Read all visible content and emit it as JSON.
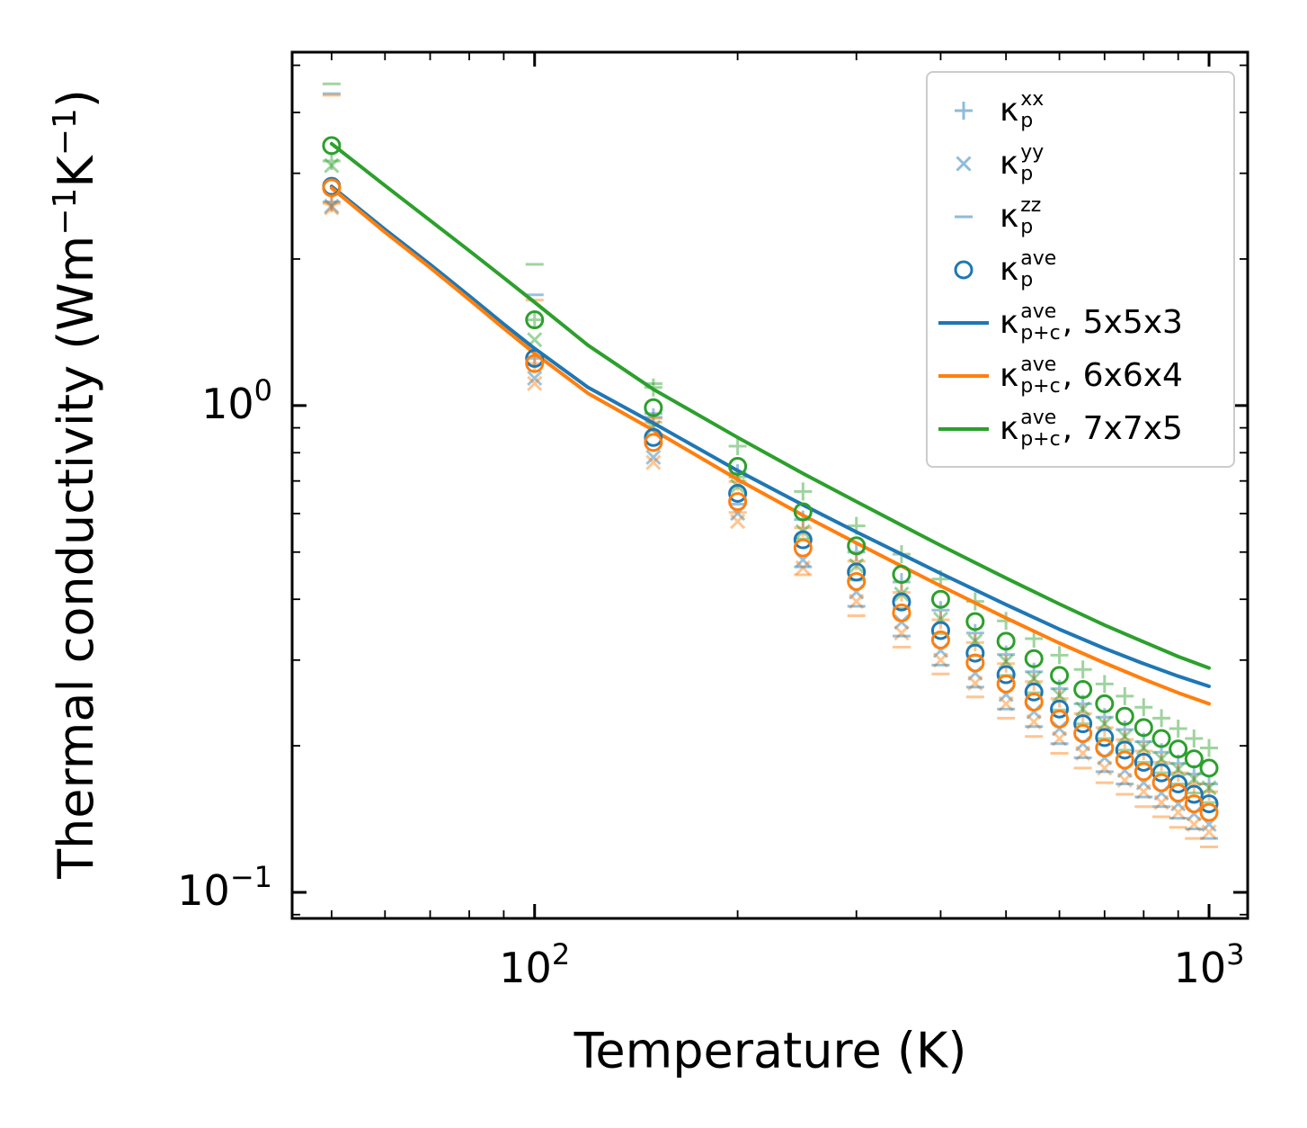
{
  "chart_data": {
    "type": "scatter+line",
    "title": "",
    "xlabel": "Temperature (K)",
    "ylabel": {
      "pre": "Thermal conductivity (Wm",
      "sup1": "−1",
      "mid": "K",
      "sup2": "−1",
      "post": ")"
    },
    "xscale": "log",
    "yscale": "log",
    "xlim": [
      43.7,
      1141
    ],
    "ylim": [
      0.0884,
      5.32
    ],
    "axes": {
      "xticks": [
        {
          "v": 100,
          "base": "10",
          "exp": "2"
        },
        {
          "v": 1000,
          "base": "10",
          "exp": "3"
        }
      ],
      "yticks": [
        {
          "v": 1,
          "base": "10",
          "exp": "0"
        },
        {
          "v": 0.1,
          "base": "10",
          "exp": "−1"
        }
      ],
      "xminor": [
        50,
        60,
        70,
        80,
        90,
        200,
        300,
        400,
        500,
        600,
        700,
        800,
        900
      ],
      "yminor": [
        0.09,
        0.2,
        0.3,
        0.4,
        0.5,
        0.6,
        0.7,
        0.8,
        0.9,
        2,
        3,
        4,
        5
      ]
    },
    "colors": {
      "blue": "#1f77b4",
      "orange": "#ff7f0e",
      "green": "#2ca02c"
    },
    "temperatures": [
      50,
      100,
      150,
      200,
      250,
      300,
      350,
      400,
      450,
      500,
      550,
      600,
      650,
      700,
      750,
      800,
      850,
      900,
      950,
      1000
    ],
    "series": [
      {
        "name": "kappa-p-xx-5x5x3",
        "marker": "plus",
        "color": "#1f77b4",
        "alpha": 0.45,
        "values": [
          2.62,
          1.25,
          0.946,
          0.726,
          0.583,
          0.5,
          0.434,
          0.38,
          0.341,
          0.308,
          0.284,
          0.262,
          0.244,
          0.229,
          0.216,
          0.204,
          0.194,
          0.184,
          0.175,
          0.167
        ]
      },
      {
        "name": "kappa-p-xx-6x6x4",
        "marker": "plus",
        "color": "#ff7f0e",
        "alpha": 0.45,
        "values": [
          2.6,
          1.22,
          0.924,
          0.698,
          0.561,
          0.479,
          0.413,
          0.363,
          0.326,
          0.295,
          0.271,
          0.25,
          0.233,
          0.218,
          0.206,
          0.195,
          0.185,
          0.176,
          0.167,
          0.161
        ]
      },
      {
        "name": "kappa-p-xx-7x7x5",
        "marker": "plus",
        "color": "#2ca02c",
        "alpha": 0.45,
        "values": [
          3.18,
          1.5,
          1.089,
          0.825,
          0.666,
          0.566,
          0.495,
          0.44,
          0.396,
          0.361,
          0.332,
          0.307,
          0.287,
          0.268,
          0.253,
          0.24,
          0.228,
          0.217,
          0.207,
          0.198
        ]
      },
      {
        "name": "kappa-p-yy-5x5x3",
        "marker": "cross",
        "color": "#1f77b4",
        "alpha": 0.45,
        "values": [
          2.566,
          1.138,
          0.783,
          0.601,
          0.482,
          0.414,
          0.359,
          0.314,
          0.282,
          0.255,
          0.235,
          0.217,
          0.202,
          0.189,
          0.178,
          0.168,
          0.16,
          0.152,
          0.145,
          0.138
        ]
      },
      {
        "name": "kappa-p-yy-6x6x4",
        "marker": "cross",
        "color": "#ff7f0e",
        "alpha": 0.45,
        "values": [
          2.548,
          1.11,
          0.764,
          0.578,
          0.464,
          0.396,
          0.341,
          0.3,
          0.269,
          0.244,
          0.224,
          0.207,
          0.193,
          0.18,
          0.17,
          0.161,
          0.153,
          0.146,
          0.138,
          0.133
        ]
      },
      {
        "name": "kappa-p-yy-7x7x5",
        "marker": "cross",
        "color": "#2ca02c",
        "alpha": 0.45,
        "values": [
          3.112,
          1.365,
          0.901,
          0.683,
          0.551,
          0.469,
          0.41,
          0.364,
          0.328,
          0.298,
          0.275,
          0.254,
          0.238,
          0.222,
          0.209,
          0.198,
          0.188,
          0.179,
          0.171,
          0.164
        ]
      },
      {
        "name": "kappa-p-zz-5x5x3",
        "marker": "dash",
        "color": "#1f77b4",
        "alpha": 0.45,
        "values": [
          4.371,
          1.688,
          0.963,
          0.627,
          0.466,
          0.387,
          0.336,
          0.293,
          0.264,
          0.238,
          0.219,
          0.202,
          0.189,
          0.177,
          0.167,
          0.157,
          0.15,
          0.142,
          0.135,
          0.129
        ]
      },
      {
        "name": "kappa-p-zz-6x6x4",
        "marker": "dash",
        "color": "#ff7f0e",
        "alpha": 0.45,
        "values": [
          4.34,
          1.647,
          0.941,
          0.603,
          0.449,
          0.37,
          0.319,
          0.281,
          0.252,
          0.228,
          0.209,
          0.193,
          0.18,
          0.168,
          0.159,
          0.15,
          0.143,
          0.136,
          0.129,
          0.124
        ]
      },
      {
        "name": "kappa-p-zz-7x7x5",
        "marker": "dash",
        "color": "#2ca02c",
        "alpha": 0.45,
        "values": [
          4.58,
          1.95,
          1.109,
          0.713,
          0.532,
          0.438,
          0.383,
          0.34,
          0.306,
          0.279,
          0.257,
          0.237,
          0.222,
          0.207,
          0.196,
          0.185,
          0.176,
          0.167,
          0.16,
          0.153
        ]
      },
      {
        "name": "kappa-p-ave-5x5x3",
        "marker": "circle",
        "color": "#1f77b4",
        "alpha": 1,
        "values": [
          2.82,
          1.25,
          0.86,
          0.66,
          0.53,
          0.455,
          0.395,
          0.345,
          0.31,
          0.28,
          0.258,
          0.238,
          0.222,
          0.208,
          0.196,
          0.185,
          0.176,
          0.167,
          0.159,
          0.152
        ]
      },
      {
        "name": "kappa-p-ave-6x6x4",
        "marker": "circle",
        "color": "#ff7f0e",
        "alpha": 1,
        "values": [
          2.8,
          1.22,
          0.84,
          0.635,
          0.51,
          0.435,
          0.375,
          0.33,
          0.296,
          0.268,
          0.246,
          0.227,
          0.212,
          0.198,
          0.187,
          0.177,
          0.168,
          0.16,
          0.152,
          0.146
        ]
      },
      {
        "name": "kappa-p-ave-7x7x5",
        "marker": "circle",
        "color": "#2ca02c",
        "alpha": 1,
        "values": [
          3.42,
          1.5,
          0.99,
          0.75,
          0.605,
          0.515,
          0.45,
          0.4,
          0.36,
          0.328,
          0.302,
          0.279,
          0.261,
          0.244,
          0.23,
          0.218,
          0.207,
          0.197,
          0.188,
          0.18
        ]
      }
    ],
    "lines": [
      {
        "name": "kappa-p-plus-c-ave-5x5x3",
        "color": "#1f77b4",
        "x": [
          50,
          60,
          70,
          80,
          90,
          100,
          120,
          150,
          200,
          250,
          300,
          350,
          400,
          500,
          600,
          700,
          800,
          900,
          1000
        ],
        "values": [
          2.82,
          2.3,
          1.95,
          1.68,
          1.47,
          1.31,
          1.09,
          0.92,
          0.735,
          0.625,
          0.55,
          0.495,
          0.452,
          0.39,
          0.347,
          0.317,
          0.295,
          0.278,
          0.265
        ]
      },
      {
        "name": "kappa-p-plus-c-ave-6x6x4",
        "color": "#ff7f0e",
        "x": [
          50,
          60,
          70,
          80,
          90,
          100,
          120,
          150,
          200,
          250,
          300,
          350,
          400,
          500,
          600,
          700,
          800,
          900,
          1000
        ],
        "values": [
          2.8,
          2.27,
          1.92,
          1.65,
          1.44,
          1.28,
          1.06,
          0.89,
          0.705,
          0.595,
          0.522,
          0.468,
          0.426,
          0.366,
          0.325,
          0.296,
          0.274,
          0.257,
          0.244
        ]
      },
      {
        "name": "kappa-p-plus-c-ave-7x7x5",
        "color": "#2ca02c",
        "x": [
          50,
          60,
          70,
          80,
          90,
          100,
          120,
          150,
          200,
          250,
          300,
          350,
          400,
          500,
          600,
          700,
          800,
          900,
          1000
        ],
        "values": [
          3.45,
          2.83,
          2.4,
          2.08,
          1.83,
          1.63,
          1.33,
          1.08,
          0.86,
          0.725,
          0.635,
          0.568,
          0.516,
          0.442,
          0.391,
          0.354,
          0.327,
          0.305,
          0.289
        ]
      }
    ]
  },
  "legend": {
    "items": [
      {
        "marker": "plus",
        "color": "#1f77b4",
        "alpha": 0.5,
        "label": {
          "kappa": "κ",
          "sup": "xx",
          "sub": "p",
          "suffix": ""
        }
      },
      {
        "marker": "cross",
        "color": "#1f77b4",
        "alpha": 0.5,
        "label": {
          "kappa": "κ",
          "sup": "yy",
          "sub": "p",
          "suffix": ""
        }
      },
      {
        "marker": "dash",
        "color": "#1f77b4",
        "alpha": 0.5,
        "label": {
          "kappa": "κ",
          "sup": "zz",
          "sub": "p",
          "suffix": ""
        }
      },
      {
        "marker": "circle",
        "color": "#1f77b4",
        "alpha": 1,
        "label": {
          "kappa": "κ",
          "sup": "ave",
          "sub": "p",
          "suffix": ""
        }
      },
      {
        "marker": "line",
        "color": "#1f77b4",
        "alpha": 1,
        "label": {
          "kappa": "κ",
          "sup": "ave",
          "sub": "p+c",
          "suffix": ", 5x5x3"
        }
      },
      {
        "marker": "line",
        "color": "#ff7f0e",
        "alpha": 1,
        "label": {
          "kappa": "κ",
          "sup": "ave",
          "sub": "p+c",
          "suffix": ", 6x6x4"
        }
      },
      {
        "marker": "line",
        "color": "#2ca02c",
        "alpha": 1,
        "label": {
          "kappa": "κ",
          "sup": "ave",
          "sub": "p+c",
          "suffix": ", 7x7x5"
        }
      }
    ]
  }
}
